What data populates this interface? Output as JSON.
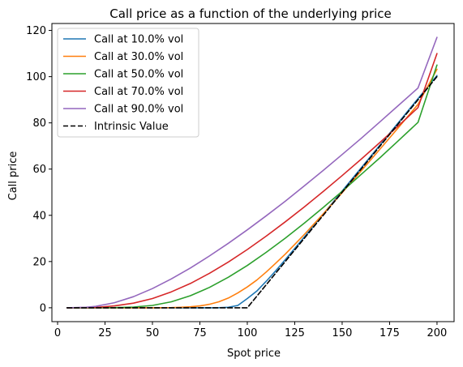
{
  "chart_data": {
    "type": "line",
    "title": "Call price as a function of the underlying price",
    "xlabel": "Spot price",
    "ylabel": "Call price",
    "xlim": [
      -3,
      209
    ],
    "ylim": [
      -6,
      123
    ],
    "xticks": [
      0,
      25,
      50,
      75,
      100,
      125,
      150,
      175,
      200
    ],
    "yticks": [
      0,
      20,
      40,
      60,
      80,
      100,
      120
    ],
    "grid": false,
    "legend_position": "top-left",
    "series": [
      {
        "name": "Call at 10.0% vol",
        "color": "#1f77b4",
        "dash": "solid",
        "x": [
          5,
          60,
          70,
          75,
          80,
          85,
          90,
          95,
          100,
          105,
          110,
          115,
          120,
          125,
          130,
          140,
          150,
          160,
          170,
          180,
          190,
          200
        ],
        "y": [
          0,
          0,
          0,
          0,
          0,
          0.02,
          0.2,
          1.0,
          4.0,
          7.2,
          11.5,
          16.0,
          20.8,
          25.7,
          30.6,
          40.5,
          50.5,
          60.5,
          70.5,
          80.5,
          90.5,
          100.5
        ]
      },
      {
        "name": "Call at 30.0% vol",
        "color": "#ff7f0e",
        "dash": "solid",
        "x": [
          5,
          50,
          60,
          65,
          70,
          75,
          80,
          85,
          90,
          95,
          100,
          105,
          110,
          115,
          120,
          125,
          130,
          140,
          150,
          160,
          170,
          180,
          190,
          200
        ],
        "y": [
          0,
          0,
          0.05,
          0.2,
          0.4,
          0.8,
          1.5,
          2.6,
          4.2,
          6.4,
          9.0,
          12.0,
          15.5,
          19.3,
          23.2,
          27.4,
          31.7,
          40.6,
          49.8,
          59.2,
          68.7,
          78.3,
          88.0,
          103.2
        ]
      },
      {
        "name": "Call at 50.0% vol",
        "color": "#2ca02c",
        "dash": "solid",
        "x": [
          5,
          30,
          40,
          50,
          60,
          70,
          80,
          90,
          100,
          110,
          120,
          130,
          140,
          150,
          160,
          170,
          180,
          190,
          200
        ],
        "y": [
          0,
          0.05,
          0.3,
          1.0,
          2.6,
          5.2,
          8.8,
          13.2,
          18.3,
          24.0,
          30.1,
          36.6,
          43.4,
          50.4,
          57.7,
          65.0,
          72.6,
          80.2,
          105.0
        ]
      },
      {
        "name": "Call at 70.0% vol",
        "color": "#d62728",
        "dash": "solid",
        "x": [
          5,
          20,
          30,
          40,
          50,
          60,
          70,
          80,
          90,
          100,
          110,
          120,
          130,
          140,
          150,
          160,
          170,
          180,
          190,
          200
        ],
        "y": [
          0,
          0.15,
          0.8,
          2.0,
          4.0,
          6.9,
          10.5,
          14.9,
          19.8,
          25.2,
          31.0,
          37.2,
          43.6,
          50.3,
          57.2,
          64.3,
          71.6,
          79.0,
          86.6,
          110.0
        ]
      },
      {
        "name": "Call at 90.0% vol",
        "color": "#9467bd",
        "dash": "solid",
        "x": [
          5,
          15,
          20,
          30,
          40,
          50,
          60,
          70,
          80,
          90,
          100,
          110,
          120,
          130,
          140,
          150,
          160,
          170,
          180,
          190,
          200
        ],
        "y": [
          0,
          0.2,
          0.6,
          2.2,
          4.8,
          8.3,
          12.5,
          17.2,
          22.4,
          27.9,
          33.7,
          39.8,
          46.1,
          52.7,
          59.4,
          66.3,
          73.3,
          80.5,
          87.8,
          95.1,
          117.0
        ]
      },
      {
        "name": "Intrinsic Value",
        "color": "#000000",
        "dash": "dashed",
        "x": [
          5,
          100,
          200
        ],
        "y": [
          0,
          0,
          100
        ]
      }
    ]
  }
}
